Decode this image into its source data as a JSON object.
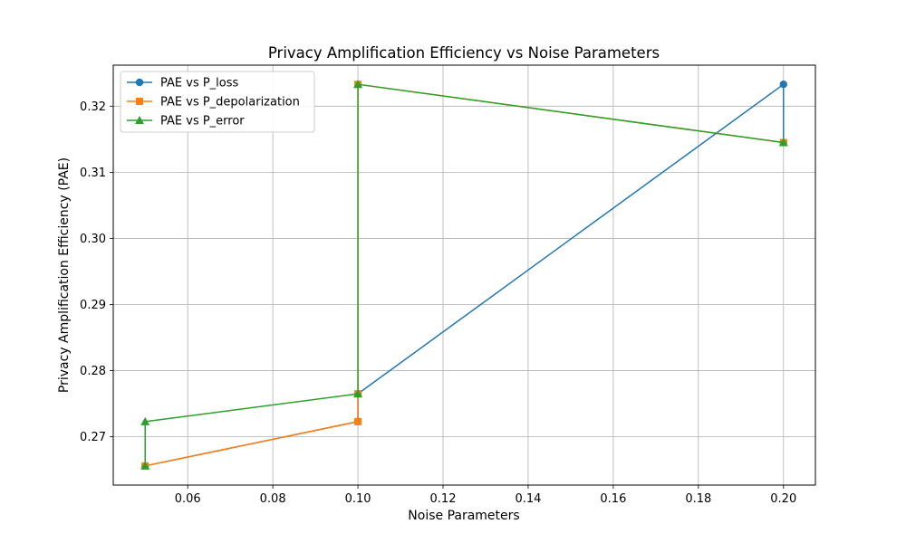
{
  "chart_data": {
    "type": "line",
    "title": "Privacy Amplification Efficiency vs Noise Parameters",
    "xlabel": "Noise Parameters",
    "ylabel": "Privacy Amplification Efficiency (PAE)",
    "xlim": [
      0.0425,
      0.2075
    ],
    "ylim": [
      0.2627,
      0.3262
    ],
    "xticks": [
      0.06,
      0.08,
      0.1,
      0.12,
      0.14,
      0.16,
      0.18,
      0.2
    ],
    "xtick_labels": [
      "0.06",
      "0.08",
      "0.10",
      "0.12",
      "0.14",
      "0.16",
      "0.18",
      "0.20"
    ],
    "yticks": [
      0.27,
      0.28,
      0.29,
      0.3,
      0.31,
      0.32
    ],
    "ytick_labels": [
      "0.27",
      "0.28",
      "0.29",
      "0.30",
      "0.31",
      "0.32"
    ],
    "grid": true,
    "legend_position": "top-left",
    "series": [
      {
        "name": "PAE vs P_loss",
        "color": "#1f77b4",
        "marker": "circle",
        "points": [
          {
            "x": 0.05,
            "y": 0.2656
          },
          {
            "x": 0.1,
            "y": 0.2723
          },
          {
            "x": 0.1,
            "y": 0.2765
          },
          {
            "x": 0.2,
            "y": 0.3233
          },
          {
            "x": 0.2,
            "y": 0.3145
          }
        ]
      },
      {
        "name": "PAE vs P_depolarization",
        "color": "#ff7f0e",
        "marker": "square",
        "points": [
          {
            "x": 0.05,
            "y": 0.2656
          },
          {
            "x": 0.1,
            "y": 0.2723
          },
          {
            "x": 0.1,
            "y": 0.2765
          },
          {
            "x": 0.1,
            "y": 0.3233
          },
          {
            "x": 0.2,
            "y": 0.3145
          }
        ]
      },
      {
        "name": "PAE vs P_error",
        "color": "#2ca02c",
        "marker": "triangle",
        "points": [
          {
            "x": 0.05,
            "y": 0.2656
          },
          {
            "x": 0.05,
            "y": 0.2723
          },
          {
            "x": 0.1,
            "y": 0.2765
          },
          {
            "x": 0.1,
            "y": 0.3233
          },
          {
            "x": 0.2,
            "y": 0.3145
          }
        ]
      }
    ]
  }
}
